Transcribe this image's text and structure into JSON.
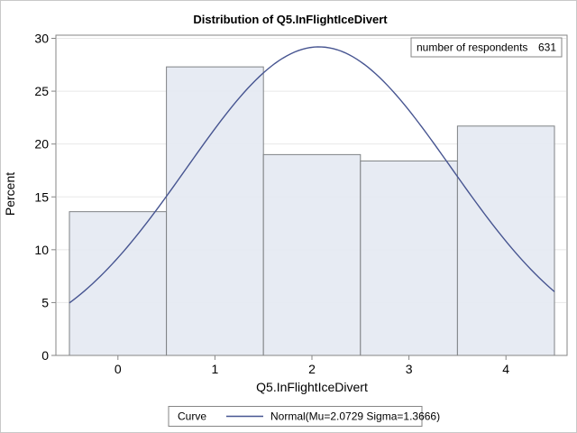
{
  "title": "Distribution of Q5.InFlightIceDivert",
  "inset": {
    "label": "number of respondents",
    "value": "631"
  },
  "legend": {
    "curve_label": "Curve",
    "curve_desc": "Normal(Mu=2.0729 Sigma=1.3666)"
  },
  "chart_data": {
    "type": "bar",
    "subtype": "histogram-with-normal-curve",
    "title": "Distribution of Q5.InFlightIceDivert",
    "xlabel": "Q5.InFlightIceDivert",
    "ylabel": "Percent",
    "categories": [
      0,
      1,
      2,
      3,
      4
    ],
    "values": [
      13.6,
      27.3,
      19.0,
      18.4,
      21.7
    ],
    "bin_width": 1,
    "xlim": [
      -0.5,
      4.5
    ],
    "ylim": [
      0,
      30
    ],
    "xticks": [
      0,
      1,
      2,
      3,
      4
    ],
    "yticks": [
      0,
      5,
      10,
      15,
      20,
      25,
      30
    ],
    "grid": true,
    "legend_position": "bottom",
    "curve": {
      "distribution": "normal",
      "mu": 2.0729,
      "sigma": 1.3666,
      "label": "Normal(Mu=2.0729 Sigma=1.3666)"
    },
    "n_respondents": 631
  },
  "colors": {
    "bar_fill": "#e5e9f2",
    "bar_stroke": "#7f8285",
    "curve": "#475591",
    "grid": "#e8e8e8",
    "frame": "#868686",
    "text": "#000000",
    "outer_border": "#c8c8c8"
  }
}
